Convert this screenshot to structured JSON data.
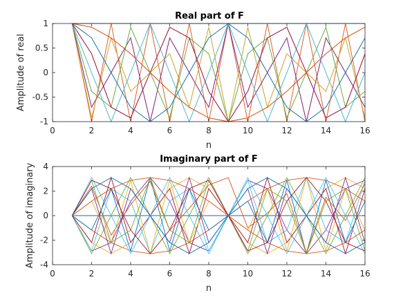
{
  "chart_data": [
    {
      "type": "line",
      "title": "Real part of F",
      "xlabel": "n",
      "ylabel": "Amplitude of real",
      "xlim": [
        0,
        16
      ],
      "ylim": [
        -1,
        1
      ],
      "xticks": [
        "0",
        "2",
        "4",
        "6",
        "8",
        "10",
        "12",
        "14",
        "16"
      ],
      "yticks": [
        "1",
        "0.5",
        "0",
        "-0.5",
        "-1"
      ],
      "x": [
        1,
        2,
        3,
        4,
        5,
        6,
        7,
        8,
        9,
        10,
        11,
        12,
        13,
        14,
        15,
        16
      ],
      "series": [
        {
          "values": [
            1,
            1,
            1,
            1,
            1,
            1,
            1,
            1,
            1,
            1,
            1,
            1,
            1,
            1,
            1,
            1
          ]
        },
        {
          "values": [
            1,
            0.924,
            0.707,
            0.383,
            0,
            -0.383,
            -0.707,
            -0.924,
            -1,
            -0.924,
            -0.707,
            -0.383,
            0,
            0.383,
            0.707,
            0.924
          ]
        },
        {
          "values": [
            1,
            0.707,
            0,
            -0.707,
            -1,
            -0.707,
            0,
            0.707,
            1,
            0.707,
            0,
            -0.707,
            -1,
            -0.707,
            0,
            0.707
          ]
        },
        {
          "values": [
            1,
            0.383,
            -0.707,
            -0.924,
            0,
            0.924,
            0.707,
            -0.383,
            -1,
            -0.383,
            0.707,
            0.924,
            0,
            -0.924,
            -0.707,
            0.383
          ]
        },
        {
          "values": [
            1,
            0,
            -1,
            0,
            1,
            0,
            -1,
            0,
            1,
            0,
            -1,
            0,
            1,
            0,
            -1,
            0
          ]
        },
        {
          "values": [
            1,
            -0.383,
            -0.707,
            0.924,
            0,
            -0.924,
            0.707,
            0.383,
            -1,
            0.383,
            0.707,
            -0.924,
            0,
            0.924,
            -0.707,
            -0.383
          ]
        },
        {
          "values": [
            1,
            -0.707,
            0,
            0.707,
            -1,
            0.707,
            0,
            -0.707,
            1,
            -0.707,
            0,
            0.707,
            -1,
            0.707,
            0,
            -0.707
          ]
        },
        {
          "values": [
            1,
            -0.924,
            0.707,
            -0.383,
            0,
            0.383,
            -0.707,
            0.924,
            -1,
            0.924,
            -0.707,
            0.383,
            0,
            -0.383,
            0.707,
            -0.924
          ]
        },
        {
          "values": [
            1,
            -1,
            1,
            -1,
            1,
            -1,
            1,
            -1,
            1,
            -1,
            1,
            -1,
            1,
            -1,
            1,
            -1
          ]
        },
        {
          "values": [
            1,
            -0.924,
            0.707,
            -0.383,
            0,
            0.383,
            -0.707,
            0.924,
            -1,
            0.924,
            -0.707,
            0.383,
            0,
            -0.383,
            0.707,
            -0.924
          ]
        },
        {
          "values": [
            1,
            -0.707,
            0,
            0.707,
            -1,
            0.707,
            0,
            -0.707,
            1,
            -0.707,
            0,
            0.707,
            -1,
            0.707,
            0,
            -0.707
          ]
        },
        {
          "values": [
            1,
            -0.383,
            -0.707,
            0.924,
            0,
            -0.924,
            0.707,
            0.383,
            -1,
            0.383,
            0.707,
            -0.924,
            0,
            0.924,
            -0.707,
            -0.383
          ]
        },
        {
          "values": [
            1,
            0,
            -1,
            0,
            1,
            0,
            -1,
            0,
            1,
            0,
            -1,
            0,
            1,
            0,
            -1,
            0
          ]
        },
        {
          "values": [
            1,
            0.383,
            -0.707,
            -0.924,
            0,
            0.924,
            0.707,
            -0.383,
            -1,
            -0.383,
            0.707,
            0.924,
            0,
            -0.924,
            -0.707,
            0.383
          ]
        },
        {
          "values": [
            1,
            0.707,
            0,
            -0.707,
            -1,
            -0.707,
            0,
            0.707,
            1,
            0.707,
            0,
            -0.707,
            -1,
            -0.707,
            0,
            0.707
          ]
        },
        {
          "values": [
            1,
            0.924,
            0.707,
            0.383,
            0,
            -0.383,
            -0.707,
            -0.924,
            -1,
            -0.924,
            -0.707,
            -0.383,
            0,
            0.383,
            0.707,
            0.924
          ]
        }
      ]
    },
    {
      "type": "line",
      "title": "Imaginary part of F",
      "xlabel": "n",
      "ylabel": "Amplitude of imaginary",
      "xlim": [
        0,
        16
      ],
      "ylim": [
        -4,
        4
      ],
      "xticks": [
        "0",
        "2",
        "4",
        "6",
        "8",
        "10",
        "12",
        "14",
        "16"
      ],
      "yticks": [
        "4",
        "2",
        "0",
        "-2",
        "-4"
      ],
      "x": [
        1,
        2,
        3,
        4,
        5,
        6,
        7,
        8,
        9,
        10,
        11,
        12,
        13,
        14,
        15,
        16
      ],
      "series": [
        {
          "values": [
            0,
            0,
            0,
            0,
            0,
            0,
            0,
            0,
            0,
            0,
            0,
            0,
            0,
            0,
            0,
            0
          ]
        },
        {
          "values": [
            0,
            -1.18,
            -2.2,
            -2.88,
            -3.1,
            -2.88,
            -2.2,
            -1.18,
            0,
            1.18,
            2.2,
            2.88,
            3.1,
            2.88,
            2.2,
            1.18
          ]
        },
        {
          "values": [
            0,
            -2.2,
            -3.1,
            -2.2,
            0,
            2.2,
            3.1,
            2.2,
            0,
            -2.2,
            -3.1,
            -2.2,
            0,
            2.2,
            3.1,
            2.2
          ]
        },
        {
          "values": [
            0,
            -2.88,
            -2.2,
            1.18,
            3.1,
            1.18,
            -2.2,
            -2.88,
            0,
            2.88,
            2.2,
            -1.18,
            -3.1,
            -1.18,
            2.2,
            2.88
          ]
        },
        {
          "values": [
            0,
            -3.1,
            0,
            3.1,
            0,
            -3.1,
            0,
            3.1,
            0,
            -3.1,
            0,
            3.1,
            0,
            -3.1,
            0,
            3.1
          ]
        },
        {
          "values": [
            0,
            -2.88,
            2.2,
            1.18,
            -3.1,
            1.18,
            2.2,
            -2.88,
            0,
            2.88,
            -2.2,
            -1.18,
            3.1,
            -1.18,
            -2.2,
            2.88
          ]
        },
        {
          "values": [
            0,
            -2.2,
            3.1,
            -2.2,
            0,
            2.2,
            -3.1,
            2.2,
            0,
            -2.2,
            3.1,
            -2.2,
            0,
            2.2,
            -3.1,
            2.2
          ]
        },
        {
          "values": [
            0,
            -1.18,
            2.2,
            -2.88,
            3.1,
            -2.88,
            2.2,
            -1.18,
            0,
            1.18,
            -2.2,
            2.88,
            -3.1,
            2.88,
            -2.2,
            1.18
          ]
        },
        {
          "values": [
            0,
            2.4,
            -1.6,
            0.9,
            2.8,
            -1.2,
            0.6,
            2.5,
            3.1,
            -1.0,
            0.2,
            1.8,
            -3.0,
            1.5,
            -0.4,
            2.6
          ]
        },
        {
          "values": [
            0,
            1.18,
            -2.2,
            2.88,
            -3.1,
            2.88,
            -2.2,
            1.18,
            0,
            -1.18,
            2.2,
            -2.88,
            3.1,
            -2.88,
            2.2,
            -1.18
          ]
        },
        {
          "values": [
            0,
            2.2,
            -3.1,
            2.2,
            0,
            -2.2,
            3.1,
            -2.2,
            0,
            2.2,
            -3.1,
            2.2,
            0,
            -2.2,
            3.1,
            -2.2
          ]
        },
        {
          "values": [
            0,
            2.88,
            -2.2,
            -1.18,
            3.1,
            -1.18,
            -2.2,
            2.88,
            0,
            -2.88,
            2.2,
            1.18,
            -3.1,
            1.18,
            2.2,
            -2.88
          ]
        },
        {
          "values": [
            0,
            3.1,
            0,
            -3.1,
            0,
            3.1,
            0,
            -3.1,
            0,
            3.1,
            0,
            -3.1,
            0,
            3.1,
            0,
            -3.1
          ]
        },
        {
          "values": [
            0,
            2.88,
            2.2,
            -1.18,
            -3.1,
            -1.18,
            2.2,
            2.88,
            0,
            -2.88,
            -2.2,
            1.18,
            3.1,
            1.18,
            -2.2,
            -2.88
          ]
        },
        {
          "values": [
            0,
            2.2,
            3.1,
            2.2,
            0,
            -2.2,
            -3.1,
            -2.2,
            0,
            2.2,
            3.1,
            2.2,
            0,
            -2.2,
            -3.1,
            -2.2
          ]
        },
        {
          "values": [
            0,
            1.18,
            2.2,
            2.88,
            3.1,
            2.88,
            2.2,
            1.18,
            0,
            -1.18,
            -2.2,
            -2.88,
            -3.1,
            -2.88,
            -2.2,
            -1.18
          ]
        }
      ]
    }
  ],
  "colors": [
    "#0072bd",
    "#d95319",
    "#edb120",
    "#7e2f8e",
    "#77ac30",
    "#4dbeee",
    "#a2142f"
  ]
}
